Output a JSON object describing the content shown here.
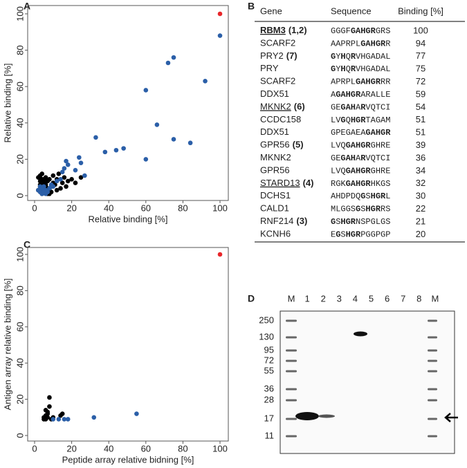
{
  "chart_data": [
    {
      "type": "scatter",
      "panel": "A",
      "xlabel": "Relative binding [%]",
      "ylabel": "Relative binding [%]",
      "xlim": [
        0,
        100
      ],
      "ylim": [
        0,
        100
      ],
      "xticks": [
        0,
        20,
        40,
        60,
        80,
        100
      ],
      "yticks": [
        0,
        20,
        40,
        60,
        80,
        100
      ],
      "series": [
        {
          "color": "#000000",
          "x": [
            2,
            3,
            3,
            4,
            4,
            5,
            5,
            6,
            6,
            7,
            7,
            8,
            8,
            9,
            10,
            10,
            11,
            12,
            13,
            14,
            15,
            16,
            17,
            18,
            20,
            22,
            25,
            3,
            4,
            5,
            6,
            2,
            3,
            8,
            9,
            12,
            4,
            6,
            7,
            5
          ],
          "values": [
            10,
            8,
            5,
            9,
            3,
            7,
            2,
            6,
            10,
            4,
            8,
            3,
            9,
            5,
            7,
            11,
            6,
            9,
            12,
            4,
            7,
            10,
            5,
            8,
            9,
            7,
            10,
            6,
            1,
            4,
            2,
            3,
            11,
            1,
            2,
            3,
            12,
            5,
            1,
            9
          ]
        },
        {
          "color": "#2b5fa8",
          "x": [
            2,
            3,
            4,
            5,
            6,
            7,
            8,
            4,
            5,
            6,
            3,
            9,
            10,
            12,
            14,
            15,
            16,
            17,
            18,
            22,
            24,
            25,
            27,
            33,
            38,
            44,
            48,
            60,
            60,
            66,
            72,
            75,
            75,
            84,
            92,
            100
          ],
          "values": [
            3,
            2,
            4,
            5,
            3,
            2,
            4,
            1,
            2,
            1,
            5,
            6,
            5,
            8,
            9,
            13,
            15,
            19,
            17,
            14,
            21,
            18,
            11,
            32,
            24,
            25,
            26,
            58,
            20,
            39,
            73,
            76,
            31,
            29,
            63,
            88
          ]
        },
        {
          "color": "#e8262a",
          "x": [
            100
          ],
          "values": [
            100
          ]
        }
      ]
    },
    {
      "type": "scatter",
      "panel": "C",
      "xlabel": "Peptide array relative bidning [%]",
      "ylabel": "Antigen array relative binding [%]",
      "xlim": [
        0,
        100
      ],
      "ylim": [
        0,
        100
      ],
      "xticks": [
        0,
        20,
        40,
        60,
        80,
        100
      ],
      "yticks": [
        0,
        20,
        40,
        60,
        80,
        100
      ],
      "series": [
        {
          "color": "#000000",
          "x": [
            5,
            6,
            6,
            7,
            7,
            8,
            8,
            5,
            9,
            10,
            14,
            15,
            6,
            7
          ],
          "values": [
            10,
            9,
            11,
            12,
            10,
            21,
            16,
            9,
            9,
            10,
            11,
            12,
            14,
            13
          ]
        },
        {
          "color": "#2b5fa8",
          "x": [
            10,
            13,
            16,
            18,
            32,
            55
          ],
          "values": [
            9,
            9,
            9,
            9,
            10,
            12
          ]
        },
        {
          "color": "#e8262a",
          "x": [
            100
          ],
          "values": [
            100
          ]
        }
      ]
    }
  ],
  "table": {
    "panel": "B",
    "columns": [
      "Gene",
      "Sequence",
      "Binding [%]"
    ],
    "highlight_color": "#e8262a",
    "sequence_color": "#2b5fa8",
    "rows": [
      {
        "gene": "RBM3",
        "ref": "(1,2)",
        "underline": true,
        "bold": true,
        "highlight": true,
        "sequence": [
          [
            "GGGF",
            false
          ],
          [
            "GAHGR",
            true
          ],
          [
            "GRS",
            false
          ]
        ],
        "binding": 100
      },
      {
        "gene": "SCARF2",
        "sequence": [
          [
            "AAPRPL",
            false
          ],
          [
            "GAHGR",
            true
          ],
          [
            "R",
            false
          ]
        ],
        "binding": 94
      },
      {
        "gene": "PRY2",
        "ref": "(7)",
        "sequence": [
          [
            "G",
            true
          ],
          [
            "Y",
            false
          ],
          [
            "H",
            true
          ],
          [
            "Q",
            false
          ],
          [
            "R",
            true
          ],
          [
            "VHGADAL",
            false
          ]
        ],
        "binding": 77
      },
      {
        "gene": "PRY",
        "sequence": [
          [
            "G",
            true
          ],
          [
            "Y",
            false
          ],
          [
            "H",
            true
          ],
          [
            "Q",
            false
          ],
          [
            "R",
            true
          ],
          [
            "VHGADAL",
            false
          ]
        ],
        "binding": 75
      },
      {
        "gene": "SCARF2",
        "sequence": [
          [
            "APRPL",
            false
          ],
          [
            "GAHGR",
            true
          ],
          [
            "RR",
            false
          ]
        ],
        "binding": 72
      },
      {
        "gene": "DDX51",
        "sequence": [
          [
            "A",
            false
          ],
          [
            "GAHGR",
            true
          ],
          [
            "ARALLE",
            false
          ]
        ],
        "binding": 59
      },
      {
        "gene": "MKNK2",
        "ref": "(6)",
        "underline": true,
        "sequence": [
          [
            "GE",
            false
          ],
          [
            "GAH",
            true
          ],
          [
            "A",
            false
          ],
          [
            "R",
            true
          ],
          [
            "VQTCI",
            false
          ]
        ],
        "binding": 54
      },
      {
        "gene": "CCDC158",
        "sequence": [
          [
            "LV",
            false
          ],
          [
            "G",
            true
          ],
          [
            "Q",
            false
          ],
          [
            "HGR",
            true
          ],
          [
            "TAGAM",
            false
          ]
        ],
        "binding": 51
      },
      {
        "gene": "DDX51",
        "sequence": [
          [
            "GPEGAEA",
            false
          ],
          [
            "GAHGR",
            true
          ]
        ],
        "binding": 51
      },
      {
        "gene": "GPR56",
        "ref": "(5)",
        "sequence": [
          [
            "LVQ",
            false
          ],
          [
            "GAHGR",
            true
          ],
          [
            "GHRE",
            false
          ]
        ],
        "binding": 39
      },
      {
        "gene": "MKNK2",
        "sequence": [
          [
            "GE",
            false
          ],
          [
            "GAH",
            true
          ],
          [
            "A",
            false
          ],
          [
            "R",
            true
          ],
          [
            "VQTCI",
            false
          ]
        ],
        "binding": 36
      },
      {
        "gene": "GPR56",
        "sequence": [
          [
            "LVQ",
            false
          ],
          [
            "GAHGR",
            true
          ],
          [
            "GHRE",
            false
          ]
        ],
        "binding": 34
      },
      {
        "gene": "STARD13",
        "ref": "(4)",
        "underline": true,
        "sequence": [
          [
            "RGK",
            false
          ],
          [
            "GAHGR",
            true
          ],
          [
            "HKGS",
            false
          ]
        ],
        "binding": 32
      },
      {
        "gene": "DCHS1",
        "sequence": [
          [
            "AHDPDQ",
            false
          ],
          [
            "G",
            true
          ],
          [
            "S",
            false
          ],
          [
            "HGR",
            true
          ],
          [
            "L",
            false
          ]
        ],
        "binding": 30
      },
      {
        "gene": "CALD1",
        "sequence": [
          [
            "MLGGS",
            false
          ],
          [
            "G",
            true
          ],
          [
            "S",
            false
          ],
          [
            "HGR",
            true
          ],
          [
            "RS",
            false
          ]
        ],
        "binding": 22
      },
      {
        "gene": "RNF214",
        "ref": "(3)",
        "sequence": [
          [
            "G",
            true
          ],
          [
            "S",
            false
          ],
          [
            "HGR",
            true
          ],
          [
            "NSPGLGS",
            false
          ]
        ],
        "binding": 21
      },
      {
        "gene": "KCNH6",
        "sequence": [
          [
            "E",
            false
          ],
          [
            "G",
            true
          ],
          [
            "S",
            false
          ],
          [
            "HGR",
            true
          ],
          [
            "PGGPGP",
            false
          ]
        ],
        "binding": 20
      }
    ]
  },
  "gel": {
    "panel": "D",
    "lanes": [
      "M",
      "1",
      "2",
      "3",
      "4",
      "5",
      "6",
      "7",
      "8",
      "M"
    ],
    "markers": [
      250,
      130,
      95,
      72,
      55,
      36,
      28,
      17,
      11
    ]
  }
}
